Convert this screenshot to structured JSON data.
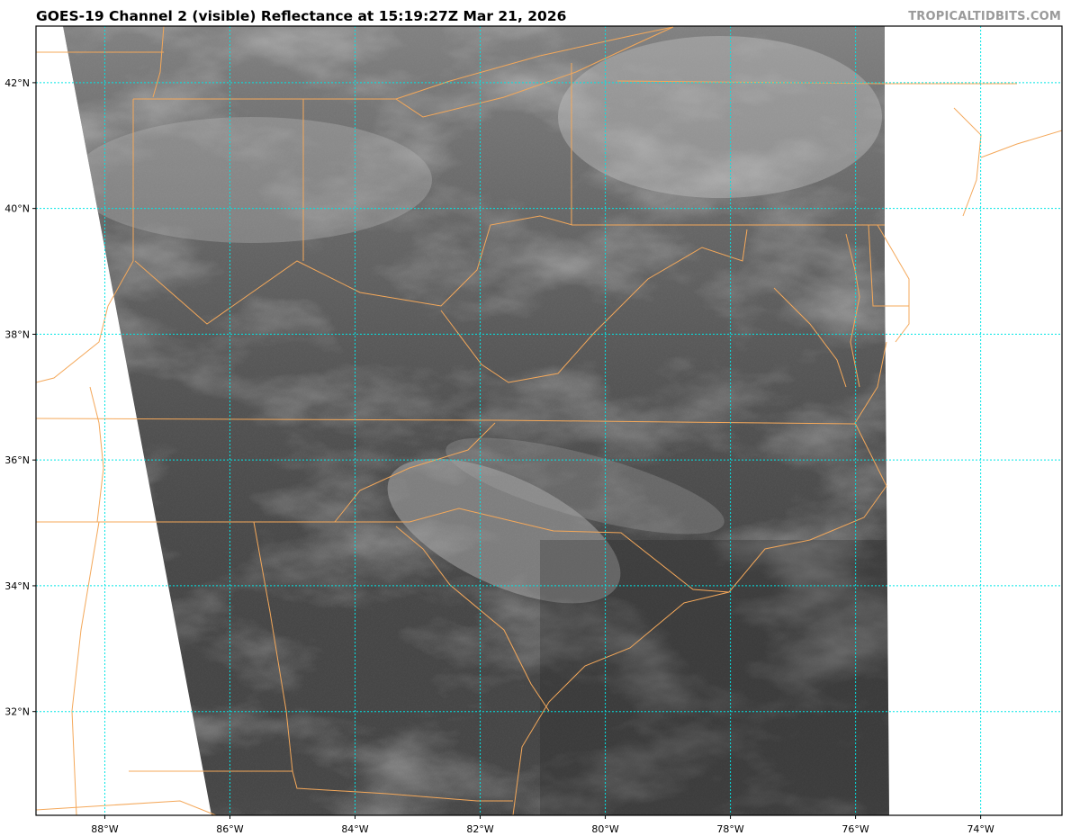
{
  "header": {
    "title": "GOES-19 Channel 2 (visible) Reflectance at 15:19:27Z Mar 21, 2026",
    "credit": "TROPICALTIDBITS.COM"
  },
  "map": {
    "satellite": "GOES-19",
    "channel": "Channel 2 (visible)",
    "lon_range": [
      -89.1,
      -72.7
    ],
    "lat_range": [
      30.35,
      42.9
    ],
    "lat_labels": [
      "42°N",
      "40°N",
      "38°N",
      "36°N",
      "34°N",
      "32°N"
    ],
    "lon_labels": [
      "88°W",
      "86°W",
      "84°W",
      "82°W",
      "80°W",
      "78°W",
      "76°W",
      "74°W"
    ],
    "gridline_color": "#00e5e5",
    "border_color": "#f4a85a"
  }
}
